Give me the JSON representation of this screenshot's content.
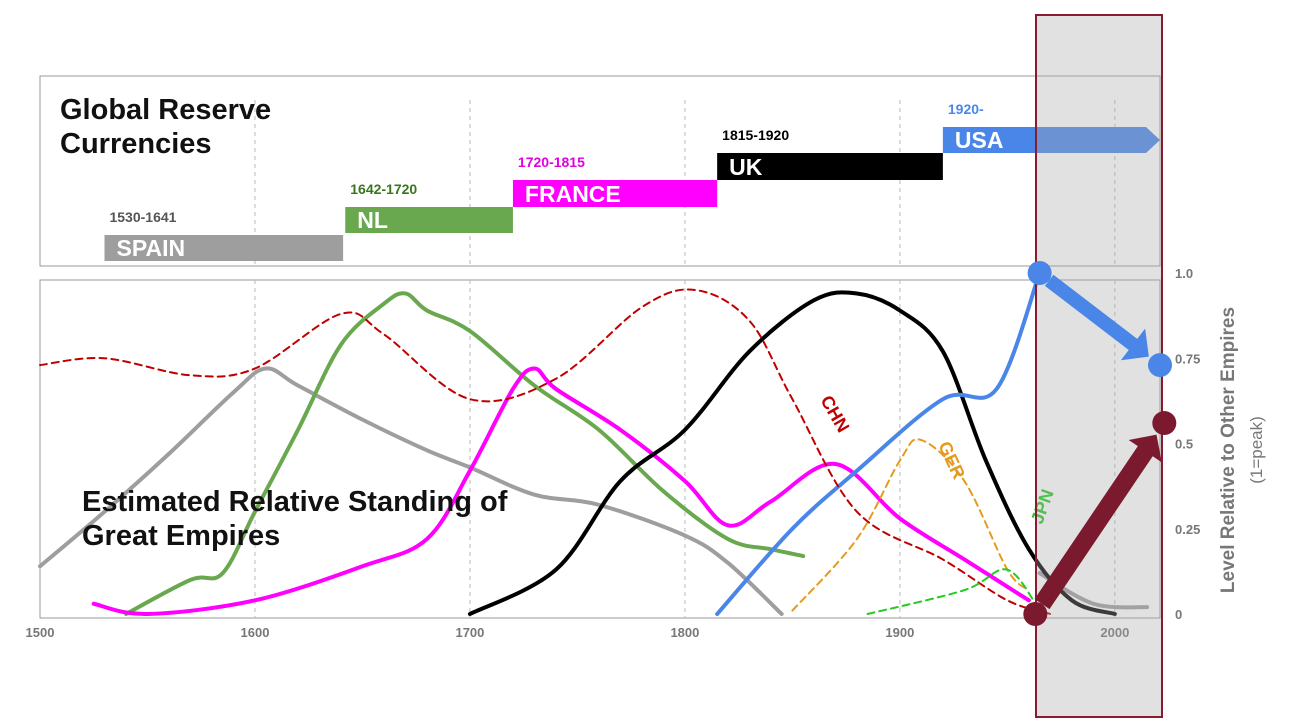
{
  "chart_data": [
    {
      "type": "gantt",
      "title": "Global Reserve Currencies",
      "categories": [
        "SPAIN",
        "NL",
        "FRANCE",
        "UK",
        "USA"
      ],
      "period_labels": [
        "1530-1641",
        "1642-1720",
        "1720-1815",
        "1815-1920",
        "1920-"
      ],
      "start": [
        1530,
        1642,
        1720,
        1815,
        1920
      ],
      "end": [
        1641,
        1720,
        1815,
        1920,
        null
      ],
      "colors": [
        "#9e9e9e",
        "#6aa84f",
        "#ff00ff",
        "#000000",
        "#4a86e8"
      ],
      "label_colors": [
        "#555555",
        "#38761d",
        "#e000e0",
        "#000000",
        "#4a86e8"
      ],
      "xlim": [
        1500,
        2021
      ]
    },
    {
      "type": "line",
      "title": "Estimated Relative Standing of Great Empires",
      "y_label": "Level Relative to Other Empires",
      "y_sublabel": "(1=peak)",
      "xlim": [
        1500,
        2021
      ],
      "ylim": [
        0,
        1
      ],
      "xticks": [
        1500,
        1600,
        1700,
        1800,
        1900,
        2000
      ],
      "yticks": [
        0,
        0.25,
        0.5,
        0.75,
        {
          "value": 1,
          "label": "1.0"
        }
      ],
      "grid": true,
      "series": [
        {
          "color": "#9e9e9e",
          "dashed": false,
          "x": [
            1500,
            1530,
            1560,
            1590,
            1605,
            1620,
            1650,
            1680,
            1700,
            1730,
            1760,
            1800,
            1820,
            1845,
            1900,
            1965,
            1990,
            2015
          ],
          "values": [
            0.14,
            0.3,
            0.47,
            0.65,
            0.72,
            0.67,
            0.57,
            0.48,
            0.43,
            0.35,
            0.32,
            0.23,
            0.15,
            0,
            null,
            0.12,
            0.03,
            0.02
          ]
        },
        {
          "color": "#6aa84f",
          "dashed": false,
          "x": [
            1540,
            1570,
            1585,
            1600,
            1620,
            1640,
            1660,
            1670,
            1680,
            1700,
            1730,
            1760,
            1790,
            1820,
            1840,
            1855
          ],
          "values": [
            0,
            0.1,
            0.12,
            0.3,
            0.54,
            0.79,
            0.91,
            0.94,
            0.89,
            0.83,
            0.67,
            0.54,
            0.36,
            0.22,
            0.19,
            0.17
          ]
        },
        {
          "color": "#ff00ff",
          "dashed": false,
          "x": [
            1525,
            1550,
            1600,
            1650,
            1680,
            1700,
            1720,
            1730,
            1740,
            1770,
            1800,
            1820,
            1840,
            1870,
            1900,
            1930,
            1960
          ],
          "values": [
            0.03,
            0,
            0.04,
            0.14,
            0.22,
            0.42,
            0.66,
            0.72,
            0.66,
            0.54,
            0.39,
            0.26,
            0.33,
            0.44,
            0.28,
            0.16,
            0.04
          ]
        },
        {
          "color": "#000000",
          "dashed": false,
          "x": [
            1700,
            1740,
            1770,
            1800,
            1830,
            1860,
            1880,
            1900,
            1920,
            1940,
            1960,
            1980,
            2000
          ],
          "values": [
            0,
            0.13,
            0.39,
            0.54,
            0.77,
            0.92,
            0.94,
            0.89,
            0.77,
            0.45,
            0.19,
            0.04,
            0
          ]
        },
        {
          "color": "#4a86e8",
          "dashed": false,
          "x": [
            1815,
            1850,
            1880,
            1920,
            1945,
            1965
          ],
          "values": [
            0,
            0.25,
            0.42,
            0.63,
            0.66,
            1
          ]
        },
        {
          "name": "CHN",
          "color": "#c00000",
          "dashed": true,
          "x": [
            1500,
            1530,
            1570,
            1600,
            1640,
            1660,
            1700,
            1740,
            1780,
            1805,
            1830,
            1850,
            1880,
            1920,
            1950,
            1970
          ],
          "values": [
            0.73,
            0.75,
            0.7,
            0.72,
            0.88,
            0.82,
            0.63,
            0.69,
            0.9,
            0.95,
            0.86,
            0.63,
            0.3,
            0.16,
            0.04,
            0
          ]
        },
        {
          "name": "GER",
          "color": "#e69a1e",
          "dashed": true,
          "x": [
            1850,
            1880,
            1900,
            1910,
            1930,
            1950,
            1960
          ],
          "values": [
            0.01,
            0.22,
            0.45,
            0.51,
            0.39,
            0.13,
            0.07
          ]
        },
        {
          "name": "JPN",
          "color": "#22cc22",
          "dashed": true,
          "x": [
            1885,
            1930,
            1950,
            1965
          ],
          "values": [
            0,
            0.07,
            0.13,
            0.01
          ]
        }
      ],
      "annotations": [
        {
          "from": [
            1965,
            1
          ],
          "to": [
            2021,
            0.73
          ],
          "color": "#4a86e8"
        },
        {
          "from": [
            1963,
            0
          ],
          "to": [
            2023,
            0.56
          ],
          "color": "#7b1a2e"
        }
      ]
    }
  ]
}
